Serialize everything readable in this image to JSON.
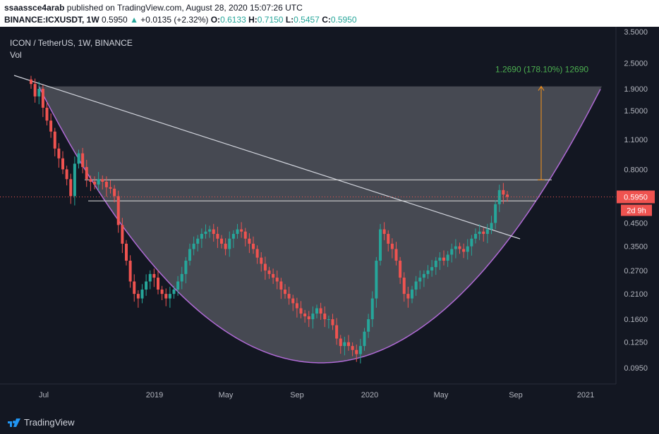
{
  "header": {
    "author": "ssaassce4arab",
    "published_text": "published on TradingView.com, August 28, 2020 15:07:26 UTC",
    "symbol": "BINANCE:ICXUSDT, 1W",
    "last": "0.5950",
    "change_arrow": "▲",
    "change": "+0.0135 (+2.32%)",
    "o_label": "O:",
    "o": "0.6133",
    "h_label": "H:",
    "h": "0.7150",
    "l_label": "L:",
    "l": "0.5457",
    "c_label": "C:",
    "c": "0.5950"
  },
  "chart_data": {
    "type": "candlestick",
    "title": "ICON / TetherUS, 1W, BINANCE",
    "indicator_label": "Vol",
    "y_scale": "log",
    "y_ticks": [
      "3.5000",
      "2.5000",
      "1.9000",
      "1.5000",
      "1.1000",
      "0.8000",
      "0.4500",
      "0.3500",
      "0.2700",
      "0.2100",
      "0.1600",
      "0.1250",
      "0.0950"
    ],
    "x_ticks": [
      "Jul",
      "2019",
      "May",
      "Sep",
      "2020",
      "May",
      "Sep",
      "2021"
    ],
    "last_price_label": "0.5950",
    "countdown_label": "2d 9h",
    "measure_label": "1.2690 (178.10%) 12690",
    "horizontal_levels": [
      0.715,
      0.57
    ],
    "measure_top": 1.95,
    "approx_ohlc_path": [
      2.0,
      1.75,
      1.9,
      1.55,
      1.35,
      1.2,
      1.0,
      0.9,
      0.8,
      0.72,
      0.6,
      0.85,
      0.95,
      0.82,
      0.72,
      0.7,
      0.68,
      0.72,
      0.7,
      0.66,
      0.65,
      0.6,
      0.44,
      0.36,
      0.3,
      0.24,
      0.21,
      0.2,
      0.22,
      0.24,
      0.26,
      0.25,
      0.22,
      0.21,
      0.2,
      0.21,
      0.22,
      0.24,
      0.26,
      0.3,
      0.34,
      0.36,
      0.38,
      0.4,
      0.41,
      0.42,
      0.4,
      0.38,
      0.36,
      0.34,
      0.38,
      0.4,
      0.42,
      0.41,
      0.38,
      0.36,
      0.34,
      0.31,
      0.29,
      0.27,
      0.26,
      0.25,
      0.24,
      0.22,
      0.21,
      0.2,
      0.19,
      0.18,
      0.17,
      0.165,
      0.16,
      0.17,
      0.18,
      0.17,
      0.16,
      0.16,
      0.15,
      0.13,
      0.12,
      0.125,
      0.12,
      0.115,
      0.11,
      0.12,
      0.14,
      0.16,
      0.2,
      0.3,
      0.42,
      0.4,
      0.36,
      0.34,
      0.3,
      0.25,
      0.21,
      0.2,
      0.22,
      0.24,
      0.25,
      0.26,
      0.27,
      0.28,
      0.3,
      0.31,
      0.3,
      0.32,
      0.34,
      0.35,
      0.34,
      0.33,
      0.35,
      0.38,
      0.4,
      0.41,
      0.4,
      0.42,
      0.45,
      0.55,
      0.64,
      0.61,
      0.595
    ]
  },
  "footer": {
    "brand": "TradingView"
  },
  "colors": {
    "background": "#131722",
    "up": "#26a69a",
    "down": "#ef5350",
    "curve": "#b06ad6",
    "measure": "#f7931a",
    "measure_text": "#4caf50"
  }
}
